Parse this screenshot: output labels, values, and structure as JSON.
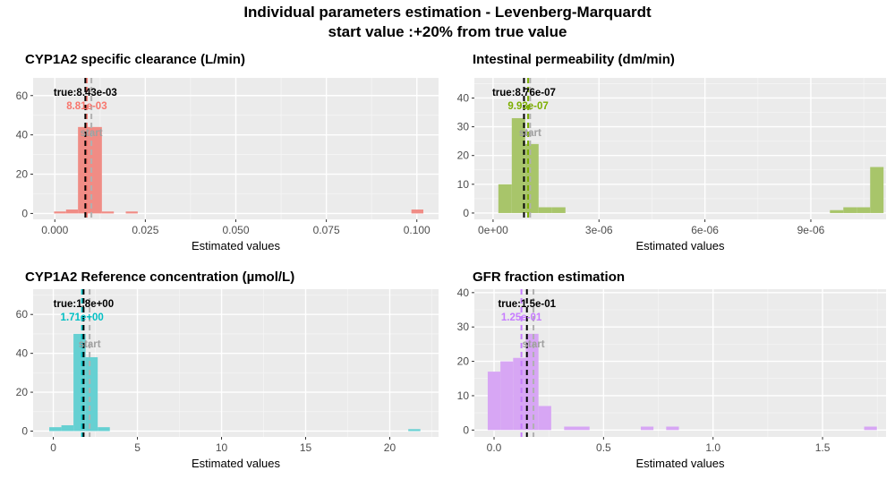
{
  "page": {
    "title_line_1": "Individual parameters estimation - Levenberg-Marquardt",
    "title_line_2": "start value :+20% from true value"
  },
  "chart_data": [
    {
      "type": "bar",
      "title": "CYP1A2 specific clearance (L/min)",
      "xlabel": "Estimated values",
      "ylabel": "",
      "xlim": [
        -0.006,
        0.106
      ],
      "ylim": [
        -3,
        69
      ],
      "x_ticks": [
        0,
        0.025,
        0.05,
        0.075,
        0.1
      ],
      "x_tick_labels": [
        "0.000",
        "0.025",
        "0.050",
        "0.075",
        "0.100"
      ],
      "y_ticks": [
        0,
        20,
        40,
        60
      ],
      "y_tick_labels": [
        "0",
        "20",
        "40",
        "60"
      ],
      "bin_width": 0.0033,
      "bins": [
        {
          "x0": -0.0002,
          "count": 1
        },
        {
          "x0": 0.0031,
          "count": 2
        },
        {
          "x0": 0.0064,
          "count": 44
        },
        {
          "x0": 0.0097,
          "count": 44
        },
        {
          "x0": 0.013,
          "count": 1
        },
        {
          "x0": 0.0196,
          "count": 1
        },
        {
          "x0": 0.0985,
          "count": 2
        }
      ],
      "fill": "#F08C85",
      "true_value": 0.00843,
      "true_label": "true:8.43e-03",
      "estimate_value": 0.00881,
      "estimate_label": "8.81e-03",
      "estimate_color": "#F8766D",
      "start_value": 0.0101,
      "start_label": "start"
    },
    {
      "type": "bar",
      "title": "Intestinal permeability (dm/min)",
      "xlabel": "Estimated values",
      "ylabel": "",
      "xlim": [
        -5.3e-07,
        1.113e-05
      ],
      "ylim": [
        -2.2,
        47
      ],
      "x_ticks": [
        0,
        3e-06,
        6e-06,
        9e-06
      ],
      "x_tick_labels": [
        "0e+00",
        "3e-06",
        "6e-06",
        "9e-06"
      ],
      "y_ticks": [
        0,
        10,
        20,
        30,
        40
      ],
      "y_tick_labels": [
        "0",
        "10",
        "20",
        "30",
        "40"
      ],
      "bin_width": 3.8e-07,
      "bins": [
        {
          "x0": 1.5e-07,
          "count": 10
        },
        {
          "x0": 5.3e-07,
          "count": 33
        },
        {
          "x0": 9.1e-07,
          "count": 24
        },
        {
          "x0": 1.29e-06,
          "count": 2
        },
        {
          "x0": 1.67e-06,
          "count": 2
        },
        {
          "x0": 9.54e-06,
          "count": 1
        },
        {
          "x0": 9.92e-06,
          "count": 2
        },
        {
          "x0": 1.03e-05,
          "count": 2
        },
        {
          "x0": 1.068e-05,
          "count": 16
        }
      ],
      "fill": "#A8C56A",
      "true_value": 8.76e-07,
      "true_label": "true:8.76e-07",
      "estimate_value": 9.93e-07,
      "estimate_label": "9.93e-07",
      "estimate_color": "#7CAE00",
      "start_value": 1.05e-06,
      "start_label": "start"
    },
    {
      "type": "bar",
      "title": "CYP1A2 Reference concentration (µmol/L)",
      "xlabel": "Estimated values",
      "ylabel": "",
      "xlim": [
        -1.2,
        22.9
      ],
      "ylim": [
        -3,
        73
      ],
      "x_ticks": [
        0,
        5,
        10,
        15,
        20
      ],
      "x_tick_labels": [
        "0",
        "5",
        "10",
        "15",
        "20"
      ],
      "y_ticks": [
        0,
        20,
        40,
        60
      ],
      "y_tick_labels": [
        "0",
        "20",
        "40",
        "60"
      ],
      "bin_width": 0.72,
      "bins": [
        {
          "x0": -0.24,
          "count": 2
        },
        {
          "x0": 0.48,
          "count": 3
        },
        {
          "x0": 1.2,
          "count": 50
        },
        {
          "x0": 1.92,
          "count": 38
        },
        {
          "x0": 2.64,
          "count": 2
        },
        {
          "x0": 21.1,
          "count": 1
        }
      ],
      "fill": "#66D0D2",
      "true_value": 1.8,
      "true_label": "true:1.8e+00",
      "estimate_value": 1.71,
      "estimate_label": "1.71e+00",
      "estimate_color": "#00BFC4",
      "start_value": 2.16,
      "start_label": "start"
    },
    {
      "type": "bar",
      "title": "GFR fraction estimation",
      "xlabel": "Estimated values",
      "ylabel": "",
      "xlim": [
        -0.09,
        1.79
      ],
      "ylim": [
        -2,
        41
      ],
      "x_ticks": [
        0,
        0.5,
        1,
        1.5
      ],
      "x_tick_labels": [
        "0.0",
        "0.5",
        "1.0",
        "1.5"
      ],
      "y_ticks": [
        0,
        10,
        20,
        30,
        40
      ],
      "y_tick_labels": [
        "0",
        "10",
        "20",
        "30",
        "40"
      ],
      "bin_width": 0.058,
      "bins": [
        {
          "x0": -0.029,
          "count": 17
        },
        {
          "x0": 0.029,
          "count": 20
        },
        {
          "x0": 0.087,
          "count": 21
        },
        {
          "x0": 0.145,
          "count": 28
        },
        {
          "x0": 0.203,
          "count": 7
        },
        {
          "x0": 0.32,
          "count": 1
        },
        {
          "x0": 0.378,
          "count": 1
        },
        {
          "x0": 0.67,
          "count": 1
        },
        {
          "x0": 0.786,
          "count": 1
        },
        {
          "x0": 1.69,
          "count": 1
        }
      ],
      "fill": "#D7A6F4",
      "true_value": 0.15,
      "true_label": "true:1.5e-01",
      "estimate_value": 0.125,
      "estimate_label": "1.25e-01",
      "estimate_color": "#C77CFF",
      "start_value": 0.18,
      "start_label": "start"
    }
  ]
}
